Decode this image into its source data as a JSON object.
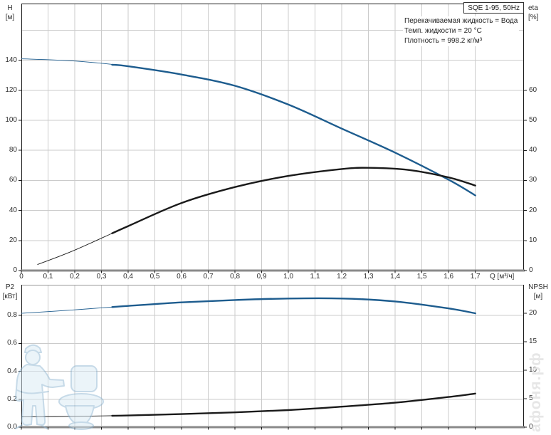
{
  "header": {
    "model": "SQE 1-95, 50Hz",
    "info_lines": [
      "Перекачиваемая жидкость = Вода",
      "Темп. жидкости = 20 °C",
      "Плотность = 998.2 кг/м³"
    ]
  },
  "axis_labels": {
    "h": "H",
    "h_unit": "[м]",
    "eta": "eta",
    "eta_unit": "[%]",
    "q": "Q [м³/ч]",
    "p2": "P2",
    "p2_unit": "[кВт]",
    "npsh": "NPSH",
    "npsh_unit": "[м]"
  },
  "watermark": {
    "site": "афоня.рф"
  },
  "colors": {
    "curve_blue": "#1d5c8e",
    "curve_black": "#1a1a1a",
    "grid": "#cbcbcb",
    "axis": "#1a1a1a",
    "axis_heavy": "#8a8a8a",
    "frame_light": "#999999",
    "watermark_fill": "#d9eaf5",
    "watermark_stroke": "#8fb6d2",
    "text": "#2f2f2f"
  },
  "chart_data": [
    {
      "type": "line",
      "name": "hq-eta-curves",
      "x_axis": {
        "label": "Q [м³/ч]",
        "range": [
          0,
          1.88
        ],
        "ticks": [
          {
            "v": 0,
            "label": "0"
          },
          {
            "v": 0.1,
            "label": "0,1"
          },
          {
            "v": 0.2,
            "label": "0,2"
          },
          {
            "v": 0.3,
            "label": "0,3"
          },
          {
            "v": 0.4,
            "label": "0,4"
          },
          {
            "v": 0.5,
            "label": "0,5"
          },
          {
            "v": 0.6,
            "label": "0,6"
          },
          {
            "v": 0.7,
            "label": "0,7"
          },
          {
            "v": 0.8,
            "label": "0,8"
          },
          {
            "v": 0.9,
            "label": "0,9"
          },
          {
            "v": 1.0,
            "label": "1,0"
          },
          {
            "v": 1.1,
            "label": "1,1"
          },
          {
            "v": 1.2,
            "label": "1,2"
          },
          {
            "v": 1.3,
            "label": "1,3"
          },
          {
            "v": 1.4,
            "label": "1,4"
          },
          {
            "v": 1.5,
            "label": "1,5"
          },
          {
            "v": 1.6,
            "label": "1,6"
          },
          {
            "v": 1.7,
            "label": "1,7"
          }
        ]
      },
      "left_axis": {
        "label": "H [м]",
        "range": [
          0,
          178
        ],
        "ticks": [
          {
            "v": 0,
            "label": "0"
          },
          {
            "v": 20,
            "label": "20"
          },
          {
            "v": 40,
            "label": "40"
          },
          {
            "v": 60,
            "label": "60"
          },
          {
            "v": 80,
            "label": "80"
          },
          {
            "v": 100,
            "label": "100"
          },
          {
            "v": 120,
            "label": "120"
          },
          {
            "v": 140,
            "label": "140"
          }
        ],
        "grid": [
          20,
          40,
          60,
          80,
          100,
          120,
          140,
          160
        ]
      },
      "right_axis": {
        "label": "eta [%]",
        "range": [
          0,
          89
        ],
        "ticks": [
          {
            "v": 0,
            "label": "0"
          },
          {
            "v": 10,
            "label": "10"
          },
          {
            "v": 20,
            "label": "20"
          },
          {
            "v": 30,
            "label": "30"
          },
          {
            "v": 40,
            "label": "40"
          },
          {
            "v": 50,
            "label": "50"
          },
          {
            "v": 60,
            "label": "60"
          }
        ]
      },
      "series": [
        {
          "name": "H",
          "axis": "left",
          "color_key": "curve_blue",
          "thick_from": 0.34,
          "points": [
            [
              0,
              141
            ],
            [
              0.2,
              139.5
            ],
            [
              0.4,
              136
            ],
            [
              0.6,
              130.5
            ],
            [
              0.8,
              123
            ],
            [
              1.0,
              110.5
            ],
            [
              1.2,
              94.5
            ],
            [
              1.4,
              78.5
            ],
            [
              1.6,
              60.5
            ],
            [
              1.7,
              50
            ]
          ]
        },
        {
          "name": "eta",
          "axis": "right",
          "color_key": "curve_black",
          "thick_from": 0.34,
          "points": [
            [
              0.06,
              2
            ],
            [
              0.2,
              6.8
            ],
            [
              0.4,
              14.8
            ],
            [
              0.6,
              22.5
            ],
            [
              0.8,
              27.8
            ],
            [
              1.0,
              31.5
            ],
            [
              1.2,
              33.8
            ],
            [
              1.3,
              34.2
            ],
            [
              1.45,
              33.5
            ],
            [
              1.6,
              31
            ],
            [
              1.7,
              28.3
            ]
          ]
        }
      ]
    },
    {
      "type": "line",
      "name": "p2-npsh-curves",
      "left_axis": {
        "label": "P2 [кВт]",
        "range": [
          0,
          1.02
        ],
        "ticks": [
          {
            "v": 0,
            "label": "0.0"
          },
          {
            "v": 0.2,
            "label": "0.2"
          },
          {
            "v": 0.4,
            "label": "0.4"
          },
          {
            "v": 0.6,
            "label": "0.6"
          },
          {
            "v": 0.8,
            "label": "0.8"
          }
        ],
        "grid": [
          0.2,
          0.4,
          0.6,
          0.8
        ]
      },
      "right_axis": {
        "label": "NPSH [м]",
        "range": [
          0,
          25
        ],
        "ticks": [
          {
            "v": 0,
            "label": "0"
          },
          {
            "v": 5,
            "label": "5"
          },
          {
            "v": 10,
            "label": "10"
          },
          {
            "v": 15,
            "label": "15"
          },
          {
            "v": 20,
            "label": "20"
          }
        ]
      },
      "series": [
        {
          "name": "P2",
          "axis": "left",
          "color_key": "curve_blue",
          "thick_from": 0.34,
          "points": [
            [
              0,
              0.815
            ],
            [
              0.2,
              0.84
            ],
            [
              0.4,
              0.868
            ],
            [
              0.6,
              0.893
            ],
            [
              0.8,
              0.91
            ],
            [
              1.0,
              0.921
            ],
            [
              1.2,
              0.921
            ],
            [
              1.4,
              0.9
            ],
            [
              1.6,
              0.85
            ],
            [
              1.7,
              0.815
            ]
          ]
        },
        {
          "name": "NPSH",
          "axis": "right",
          "color_key": "curve_black",
          "thick_from": 0.34,
          "points": [
            [
              0,
              1.8
            ],
            [
              0.2,
              1.9
            ],
            [
              0.4,
              2.05
            ],
            [
              0.6,
              2.3
            ],
            [
              0.8,
              2.6
            ],
            [
              1.0,
              3.0
            ],
            [
              1.2,
              3.6
            ],
            [
              1.4,
              4.3
            ],
            [
              1.6,
              5.3
            ],
            [
              1.7,
              5.9
            ]
          ]
        }
      ]
    }
  ]
}
